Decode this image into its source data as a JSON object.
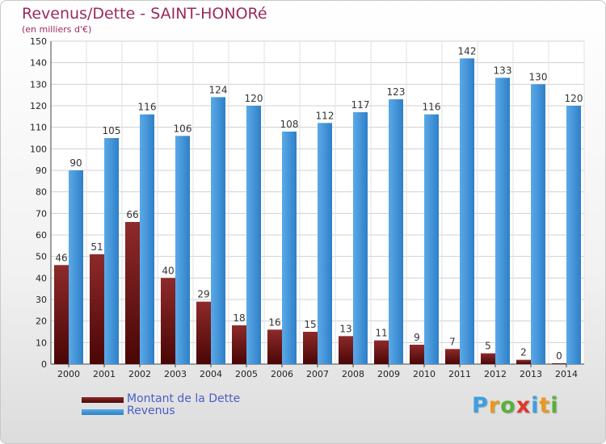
{
  "chart_data": {
    "type": "bar",
    "title": "Revenus/Dette - SAINT-HONORé",
    "subtitle": "(en milliers d'€)",
    "categories": [
      "2000",
      "2001",
      "2002",
      "2003",
      "2004",
      "2005",
      "2006",
      "2007",
      "2008",
      "2009",
      "2010",
      "2011",
      "2012",
      "2013",
      "2014"
    ],
    "series": [
      {
        "name": "Montant de la Dette",
        "values": [
          46,
          51,
          66,
          40,
          29,
          18,
          16,
          15,
          13,
          11,
          9,
          7,
          5,
          2,
          0
        ],
        "color": "#7a1a1a"
      },
      {
        "name": "Revenus",
        "values": [
          90,
          105,
          116,
          106,
          124,
          120,
          108,
          112,
          117,
          123,
          116,
          142,
          133,
          130,
          120
        ],
        "color": "#3d8fd8"
      }
    ],
    "ylim": [
      0,
      150
    ],
    "yticks": [
      0,
      10,
      20,
      30,
      40,
      50,
      60,
      70,
      80,
      90,
      100,
      110,
      120,
      130,
      140,
      150
    ],
    "grid": true,
    "legend": "bottom-left"
  },
  "logo": {
    "letters": [
      "P",
      "r",
      "o",
      "x",
      "i",
      "t",
      "i"
    ],
    "colors": [
      "#3da0e0",
      "#e89a1e",
      "#58b03a",
      "#e0382b",
      "#3da0e0",
      "#e89a1e",
      "#58b03a"
    ]
  }
}
